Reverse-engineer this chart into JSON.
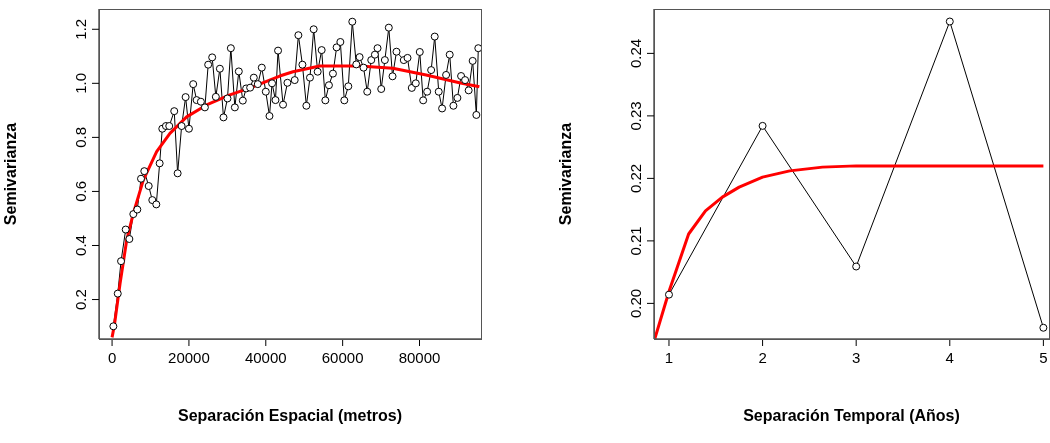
{
  "chart_data": [
    {
      "type": "line",
      "xlabel": "Separación Espacial (metros)",
      "ylabel": "Semivarianza",
      "xlim": [
        -3400,
        96000
      ],
      "ylim": [
        0.054,
        1.275
      ],
      "xticks": [
        0,
        20000,
        40000,
        60000,
        80000
      ],
      "yticks": [
        0.2,
        0.4,
        0.6,
        0.8,
        {
          "value": 1,
          "label": "1.0"
        },
        1.2
      ],
      "grid": false,
      "series": [
        {
          "color": "#000000",
          "marker": "circle",
          "x": [
            340,
            1480,
            2340,
            3550,
            4500,
            5530,
            6570,
            7530,
            8390,
            9530,
            10470,
            11510,
            12380,
            13070,
            14020,
            14880,
            16180,
            17060,
            18100,
            19140,
            20000,
            21110,
            22000,
            23110,
            24150,
            25010,
            26050,
            27000,
            28050,
            28990,
            30030,
            30910,
            31950,
            32980,
            34020,
            34890,
            35930,
            36880,
            37920,
            38960,
            40000,
            40960,
            41630,
            42520,
            43190,
            44490,
            45630,
            47520,
            48480,
            49530,
            50560,
            51500,
            52460,
            53500,
            54540,
            55500,
            56430,
            57470,
            58430,
            59400,
            60430,
            61470,
            62510,
            63550,
            64410,
            65440,
            66400,
            67440,
            68390,
            69080,
            70040,
            70980,
            72010,
            72980,
            74010,
            75910,
            76880,
            77990,
            79030,
            80070,
            80950,
            81990,
            83030,
            83960,
            85000,
            85880,
            86920,
            87860,
            88820,
            89860,
            90820,
            91860,
            92790,
            93830,
            94790,
            95300
          ],
          "values": [
            0.101,
            0.222,
            0.342,
            0.459,
            0.424,
            0.516,
            0.533,
            0.647,
            0.675,
            0.62,
            0.568,
            0.552,
            0.704,
            0.832,
            0.842,
            0.842,
            0.897,
            0.667,
            0.842,
            0.949,
            0.832,
            0.997,
            0.938,
            0.932,
            0.911,
            1.069,
            1.096,
            0.95,
            1.054,
            0.874,
            0.944,
            1.13,
            0.911,
            1.044,
            0.936,
            0.981,
            0.984,
            1.021,
            0.997,
            1.058,
            0.969,
            0.879,
            1.0,
            0.938,
            1.121,
            0.921,
            1.002,
            1.012,
            1.178,
            1.069,
            0.917,
            1.021,
            1.2,
            1.043,
            1.123,
            0.937,
            0.993,
            1.036,
            1.133,
            1.153,
            0.937,
            0.989,
            1.228,
            1.07,
            1.097,
            1.058,
            0.969,
            1.086,
            1.106,
            1.13,
            0.979,
            1.086,
            1.206,
            1.026,
            1.117,
            1.086,
            1.094,
            0.983,
            1.0,
            1.116,
            0.937,
            0.969,
            1.049,
            1.173,
            0.969,
            0.907,
            1.031,
            1.106,
            0.917,
            0.946,
            1.027,
            1.012,
            0.974,
            1.083,
            0.883,
            1.13
          ]
        },
        {
          "color": "#ff0000",
          "marker": "none",
          "x": [
            0,
            600,
            2080,
            3810,
            5530,
            8130,
            11600,
            15060,
            19400,
            24590,
            30650,
            36700,
            43630,
            47080,
            54020,
            64410,
            73060,
            81730,
            90380,
            95570
          ],
          "values": [
            0.06,
            0.105,
            0.259,
            0.42,
            0.519,
            0.642,
            0.747,
            0.815,
            0.876,
            0.92,
            0.957,
            0.987,
            1.027,
            1.043,
            1.064,
            1.064,
            1.056,
            1.031,
            1.002,
            0.987
          ]
        }
      ]
    },
    {
      "type": "line",
      "xlabel": "Separación Temporal (Años)",
      "ylabel": "Semivarianza",
      "xlim": [
        0.84,
        5.06
      ],
      "ylim": [
        0.1943,
        0.2471
      ],
      "xticks": [
        1,
        2,
        3,
        4,
        5
      ],
      "yticks": [
        {
          "value": 0.2,
          "label": "0.20"
        },
        0.21,
        {
          "value": 0.22,
          "label": "0.22"
        },
        0.23,
        0.24
      ],
      "grid": false,
      "series": [
        {
          "color": "#000000",
          "marker": "circle",
          "x": [
            1,
            2,
            3,
            4,
            5
          ],
          "values": [
            0.2014,
            0.2284,
            0.2059,
            0.2451,
            0.1961
          ]
        },
        {
          "color": "#ff0000",
          "marker": "none",
          "x": [
            0.85,
            1.0,
            1.21,
            1.39,
            1.57,
            1.75,
            2.0,
            2.29,
            2.64,
            3.0,
            4.0,
            5.0
          ],
          "values": [
            0.1944,
            0.2019,
            0.2111,
            0.2148,
            0.217,
            0.2186,
            0.2202,
            0.2212,
            0.2218,
            0.222,
            0.222,
            0.222
          ]
        }
      ]
    }
  ]
}
